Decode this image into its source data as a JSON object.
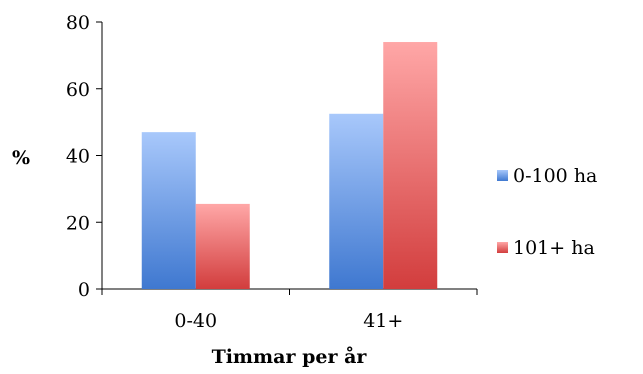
{
  "chart_data": {
    "type": "bar",
    "categories": [
      "0-40",
      "41+"
    ],
    "series": [
      {
        "name": "0-100 ha",
        "values": [
          47,
          52.5
        ],
        "color": "#5b8fd6"
      },
      {
        "name": "101+ ha",
        "values": [
          25.5,
          74
        ],
        "color": "#e06868"
      }
    ],
    "xlabel": "Timmar per år",
    "ylabel": "%",
    "ylim": [
      0,
      80
    ],
    "yticks": [
      "0",
      "20",
      "40",
      "60",
      "80"
    ],
    "grid": false,
    "legend_position": "right"
  }
}
